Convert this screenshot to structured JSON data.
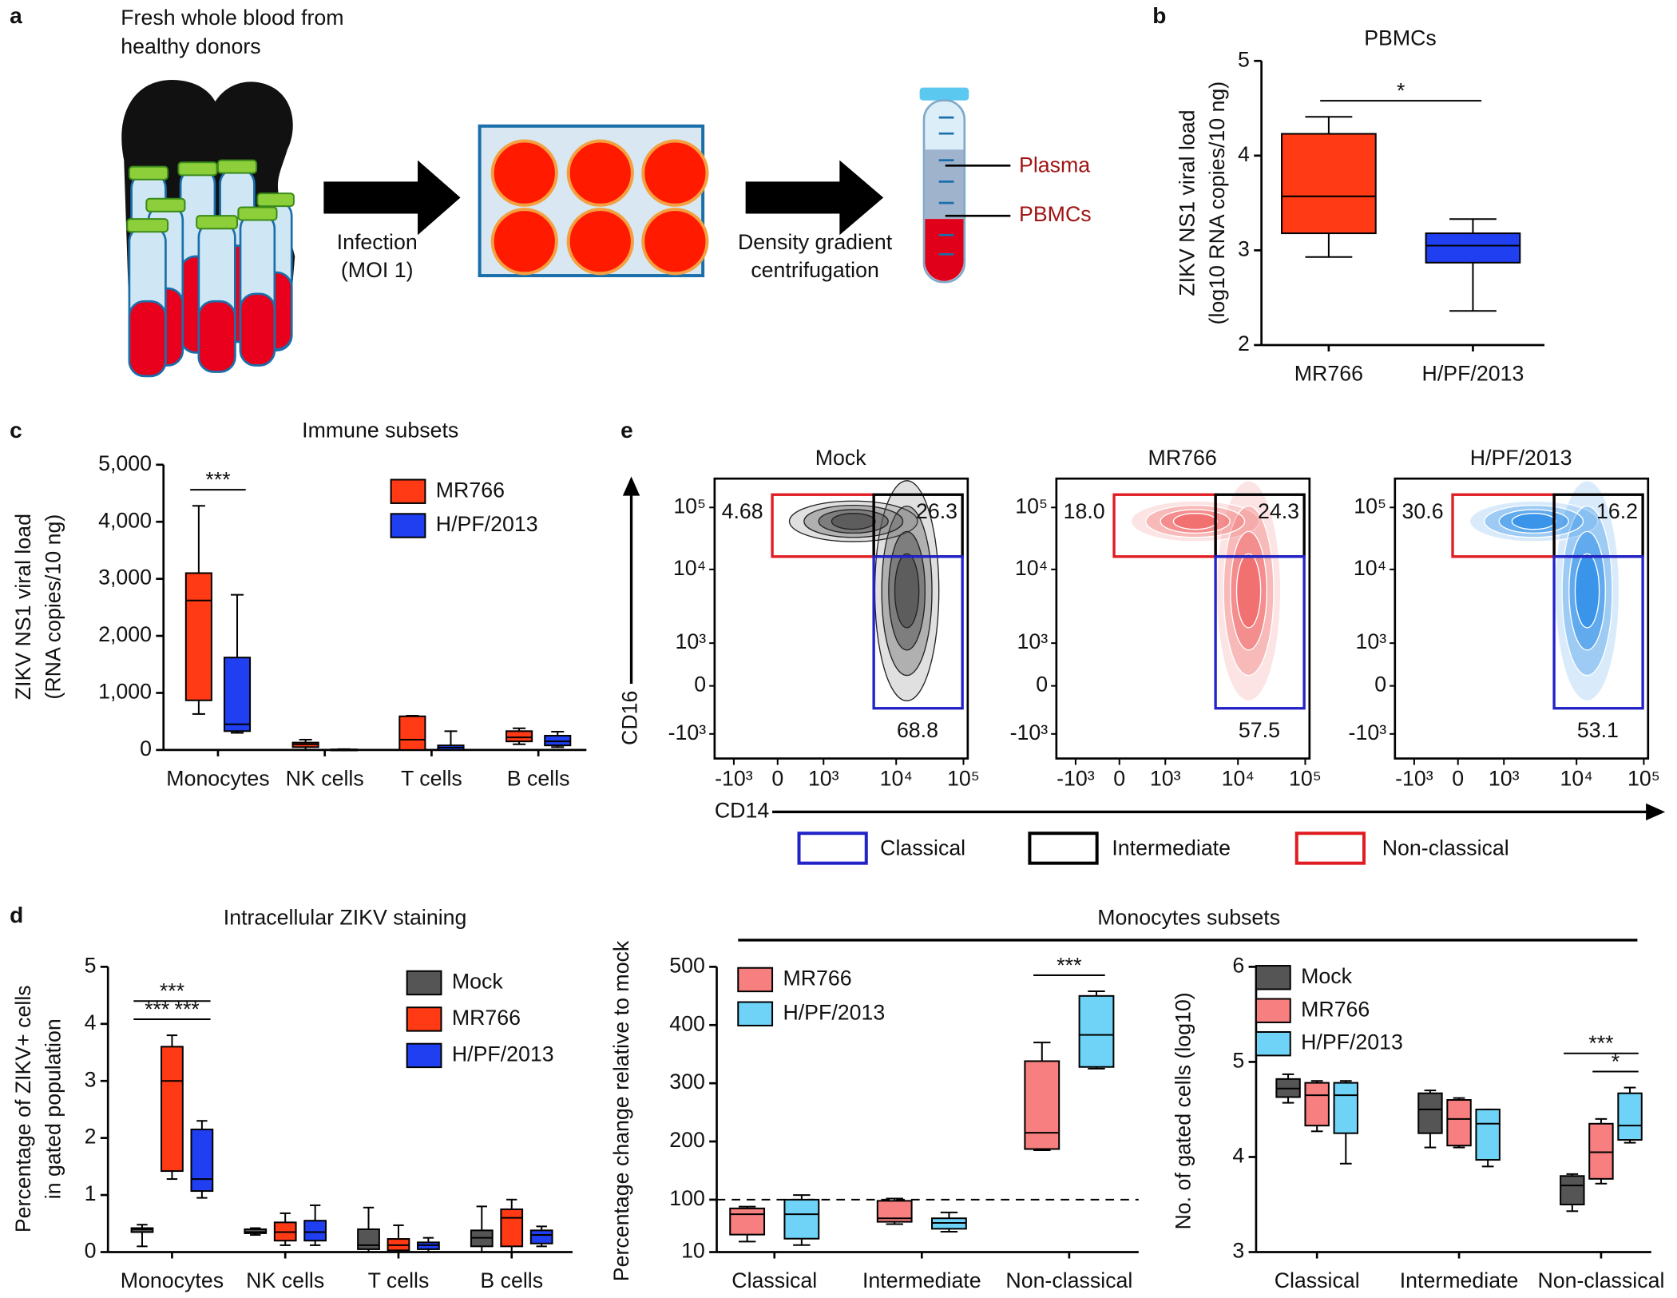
{
  "panel_labels": [
    "a",
    "b",
    "c",
    "d",
    "e"
  ],
  "diagram": {
    "source_lines": [
      "Fresh whole blood from",
      "healthy donors"
    ],
    "step1_lines": [
      "Infection",
      "(MOI 1)"
    ],
    "step2_lines": [
      "Density gradient",
      "centrifugation"
    ],
    "layers": [
      "Plasma",
      "PBMCs"
    ]
  },
  "chart_data": [
    {
      "type": "box",
      "title": "PBMCs",
      "ylabel": [
        "ZIKV NS1 viral load",
        "(log10 RNA copies/10 ng)"
      ],
      "categories": [
        "MR766",
        "H/PF/2013"
      ],
      "series": [
        {
          "colors": [
            "#ff3a14",
            "#1f3ff0"
          ],
          "values": [
            {
              "min": 2.93,
              "q1": 3.18,
              "median": 3.57,
              "q3": 4.23,
              "max": 4.41
            },
            {
              "min": 2.36,
              "q1": 2.87,
              "median": 3.05,
              "q3": 3.18,
              "max": 3.33
            }
          ]
        }
      ],
      "ylim": [
        2,
        5
      ],
      "yticks": [
        2,
        3,
        4,
        5
      ],
      "annotations": [
        {
          "text": "*",
          "categories": [
            0,
            1
          ]
        }
      ]
    },
    {
      "type": "box",
      "title": "Immune subsets",
      "ylabel": [
        "ZIKV NS1 viral load",
        "(RNA copies/10 ng)"
      ],
      "categories": [
        "Monocytes",
        "NK cells",
        "T cells",
        "B cells"
      ],
      "series": [
        {
          "name": "MR766",
          "color": "#ff3a14",
          "values": [
            {
              "min": 630,
              "q1": 870,
              "median": 2620,
              "q3": 3100,
              "max": 4280
            },
            {
              "min": 0,
              "q1": 50,
              "median": 100,
              "q3": 130,
              "max": 180
            },
            {
              "min": 0,
              "q1": 0,
              "median": 180,
              "q3": 590,
              "max": 600
            },
            {
              "min": 100,
              "q1": 150,
              "median": 220,
              "q3": 330,
              "max": 380
            }
          ]
        },
        {
          "name": "H/PF/2013",
          "color": "#1f3ff0",
          "values": [
            {
              "min": 300,
              "q1": 330,
              "median": 450,
              "q3": 1620,
              "max": 2720
            },
            {
              "min": 0,
              "q1": 0,
              "median": 5,
              "q3": 10,
              "max": 15
            },
            {
              "min": 0,
              "q1": 0,
              "median": 40,
              "q3": 80,
              "max": 330
            },
            {
              "min": 50,
              "q1": 80,
              "median": 150,
              "q3": 250,
              "max": 320
            }
          ]
        }
      ],
      "ylim": [
        0,
        5000
      ],
      "yticks": [
        0,
        {
          "value": 1000,
          "label": "1,000"
        },
        {
          "value": 2000,
          "label": "2,000"
        },
        {
          "value": 3000,
          "label": "3,000"
        },
        {
          "value": 4000,
          "label": "4,000"
        },
        {
          "value": 5000,
          "label": "5,000"
        }
      ],
      "annotations": [
        {
          "text": "***",
          "category": 0,
          "series": [
            0,
            1
          ]
        }
      ]
    },
    {
      "type": "box",
      "title": "Intracellular ZIKV staining",
      "ylabel": [
        "Percentage of ZIKV+ cells",
        "in gated population"
      ],
      "categories": [
        "Monocytes",
        "NK cells",
        "T cells",
        "B cells"
      ],
      "series": [
        {
          "name": "Mock",
          "color": "#555555",
          "values": [
            {
              "min": 0.1,
              "q1": 0.35,
              "median": 0.4,
              "q3": 0.42,
              "max": 0.48
            },
            {
              "min": 0.3,
              "q1": 0.33,
              "median": 0.35,
              "q3": 0.4,
              "max": 0.42
            },
            {
              "min": 0,
              "q1": 0.05,
              "median": 0.12,
              "q3": 0.4,
              "max": 0.78
            },
            {
              "min": 0,
              "q1": 0.1,
              "median": 0.25,
              "q3": 0.38,
              "max": 0.8
            }
          ]
        },
        {
          "name": "MR766",
          "color": "#ff3a14",
          "values": [
            {
              "min": 1.28,
              "q1": 1.42,
              "median": 3.0,
              "q3": 3.6,
              "max": 3.8
            },
            {
              "min": 0.12,
              "q1": 0.2,
              "median": 0.35,
              "q3": 0.52,
              "max": 0.68
            },
            {
              "min": 0,
              "q1": 0.03,
              "median": 0.12,
              "q3": 0.23,
              "max": 0.47
            },
            {
              "min": 0,
              "q1": 0.1,
              "median": 0.6,
              "q3": 0.75,
              "max": 0.92
            }
          ]
        },
        {
          "name": "H/PF/2013",
          "color": "#1f3ff0",
          "values": [
            {
              "min": 0.95,
              "q1": 1.07,
              "median": 1.28,
              "q3": 2.15,
              "max": 2.3
            },
            {
              "min": 0.12,
              "q1": 0.2,
              "median": 0.35,
              "q3": 0.55,
              "max": 0.82
            },
            {
              "min": 0,
              "q1": 0.05,
              "median": 0.12,
              "q3": 0.17,
              "max": 0.25
            },
            {
              "min": 0.1,
              "q1": 0.15,
              "median": 0.3,
              "q3": 0.38,
              "max": 0.45
            }
          ]
        }
      ],
      "ylim": [
        0,
        5
      ],
      "yticks": [
        0,
        1,
        2,
        3,
        4,
        5
      ],
      "annotations": [
        {
          "text": "***",
          "category": 0,
          "series": [
            0,
            2
          ]
        },
        {
          "text": "***",
          "category": 0,
          "series": [
            0,
            1
          ]
        },
        {
          "text": "***",
          "category": 0,
          "series": [
            1,
            2
          ]
        }
      ]
    },
    {
      "type": "box",
      "ylabel": [
        "Percentage change relative to mock"
      ],
      "categories": [
        "Classical",
        "Intermediate",
        "Non-classical"
      ],
      "series": [
        {
          "name": "MR766",
          "color": "#f77f7f",
          "values": [
            {
              "min": 28,
              "q1": 40,
              "median": 75,
              "q3": 85,
              "max": 88
            },
            {
              "min": 58,
              "q1": 62,
              "median": 68,
              "q3": 98,
              "max": 102
            },
            {
              "min": 185,
              "q1": 187,
              "median": 215,
              "q3": 338,
              "max": 370
            }
          ]
        },
        {
          "name": "H/PF/2013",
          "color": "#6fd3f7",
          "values": [
            {
              "min": 22,
              "q1": 33,
              "median": 75,
              "q3": 100,
              "max": 108
            },
            {
              "min": 45,
              "q1": 50,
              "median": 60,
              "q3": 68,
              "max": 78
            },
            {
              "min": 325,
              "q1": 328,
              "median": 383,
              "q3": 450,
              "max": 458
            }
          ]
        }
      ],
      "ylim": [
        10,
        500
      ],
      "yticks": [
        10,
        100,
        200,
        300,
        400,
        500
      ],
      "reference_line": 100,
      "annotations": [
        {
          "text": "***",
          "category": 2,
          "series": [
            0,
            1
          ]
        }
      ]
    },
    {
      "type": "box",
      "ylabel": [
        "No. of gated cells (log10)"
      ],
      "categories": [
        "Classical",
        "Intermediate",
        "Non-classical"
      ],
      "series": [
        {
          "name": "Mock",
          "color": "#555555",
          "values": [
            {
              "min": 4.57,
              "q1": 4.63,
              "median": 4.72,
              "q3": 4.82,
              "max": 4.87
            },
            {
              "min": 4.1,
              "q1": 4.25,
              "median": 4.5,
              "q3": 4.67,
              "max": 4.7
            },
            {
              "min": 3.43,
              "q1": 3.5,
              "median": 3.7,
              "q3": 3.8,
              "max": 3.82
            }
          ]
        },
        {
          "name": "MR766",
          "color": "#f77f7f",
          "values": [
            {
              "min": 4.27,
              "q1": 4.33,
              "median": 4.65,
              "q3": 4.78,
              "max": 4.8
            },
            {
              "min": 4.1,
              "q1": 4.12,
              "median": 4.4,
              "q3": 4.6,
              "max": 4.62
            },
            {
              "min": 3.72,
              "q1": 3.77,
              "median": 4.05,
              "q3": 4.35,
              "max": 4.4
            }
          ]
        },
        {
          "name": "H/PF/2013",
          "color": "#6fd3f7",
          "values": [
            {
              "min": 3.93,
              "q1": 4.25,
              "median": 4.65,
              "q3": 4.78,
              "max": 4.8
            },
            {
              "min": 3.9,
              "q1": 3.97,
              "median": 4.35,
              "q3": 4.5,
              "max": 4.5
            },
            {
              "min": 4.15,
              "q1": 4.18,
              "median": 4.33,
              "q3": 4.67,
              "max": 4.73
            }
          ]
        }
      ],
      "ylim": [
        3,
        6
      ],
      "yticks": [
        3,
        4,
        5,
        6
      ],
      "annotations": [
        {
          "text": "***",
          "category": 2,
          "series": [
            0,
            2
          ]
        },
        {
          "text": "*",
          "category": 2,
          "series": [
            1,
            2
          ]
        }
      ]
    }
  ],
  "monocyte_header": "Monocytes subsets",
  "flow": {
    "y_label": "CD16",
    "x_label": "CD14",
    "yticks": [
      "10⁵",
      "10⁴",
      "10³",
      "0",
      "-10³"
    ],
    "xticks": [
      "-10³",
      "0",
      "10³",
      "10⁴",
      "10⁵"
    ],
    "plots": [
      {
        "title": "Mock",
        "color": "#555555",
        "non_classical": "4.68",
        "intermediate": "26.3",
        "classical": "68.8"
      },
      {
        "title": "MR766",
        "color": "#f06a6a",
        "non_classical": "18.0",
        "intermediate": "24.3",
        "classical": "57.5"
      },
      {
        "title": "H/PF/2013",
        "color": "#2f8fe8",
        "non_classical": "30.6",
        "intermediate": "16.2",
        "classical": "53.1"
      }
    ],
    "legend": [
      "Classical",
      "Intermediate",
      "Non-classical"
    ]
  }
}
